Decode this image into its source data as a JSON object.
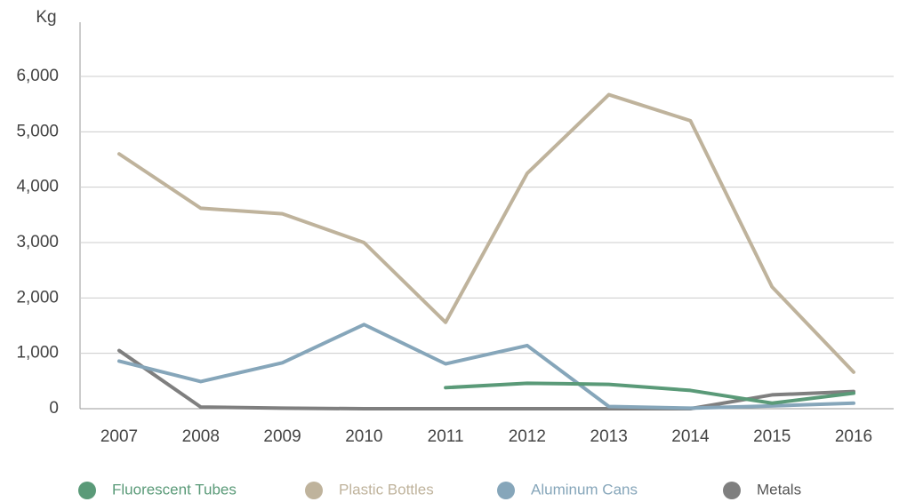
{
  "chart_data": {
    "type": "line",
    "y_label": "Kg",
    "categories": [
      "2007",
      "2008",
      "2009",
      "2010",
      "2011",
      "2012",
      "2013",
      "2014",
      "2015",
      "2016"
    ],
    "series": [
      {
        "name": "Fluorescent Tubes",
        "color": "#5a9a78",
        "values": [
          null,
          null,
          null,
          null,
          380,
          460,
          440,
          330,
          100,
          280
        ]
      },
      {
        "name": "Plastic Bottles",
        "color": "#bfb39c",
        "values": [
          4600,
          3620,
          3520,
          3000,
          1560,
          4250,
          5670,
          5200,
          2200,
          660
        ]
      },
      {
        "name": "Aluminum Cans",
        "color": "#86a6ba",
        "values": [
          860,
          490,
          830,
          1520,
          810,
          1140,
          40,
          10,
          50,
          100
        ]
      },
      {
        "name": "Metals",
        "color": "#7f7f7f",
        "values": [
          1050,
          30,
          10,
          0,
          0,
          0,
          0,
          0,
          250,
          310
        ]
      }
    ],
    "ylim": [
      0,
      6000
    ],
    "yticks": [
      0,
      {
        "value": 1000,
        "label": "1,000"
      },
      {
        "value": 2000,
        "label": "2,000"
      },
      {
        "value": 3000,
        "label": "3,000"
      },
      {
        "value": 4000,
        "label": "4,000"
      },
      {
        "value": 5000,
        "label": "5,000"
      },
      {
        "value": 6000,
        "label": "6,000"
      }
    ],
    "grid": true
  }
}
